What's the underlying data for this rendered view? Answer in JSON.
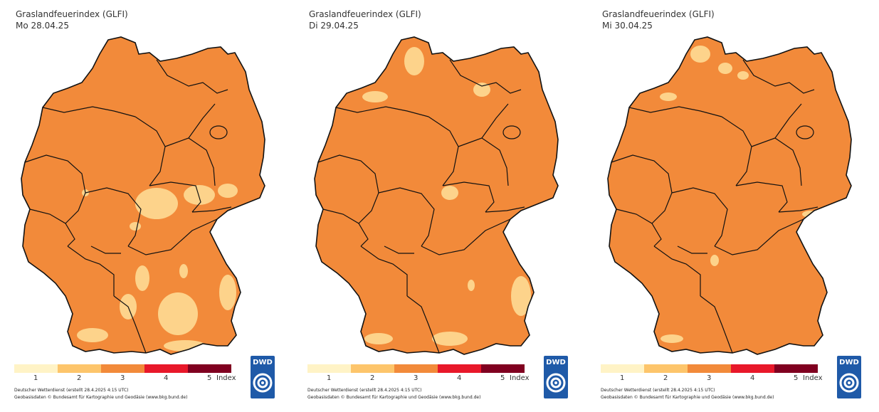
{
  "panels": [
    {
      "title": "Graslandfeuerindex (GLFI)",
      "date": "Mo 28.04.25",
      "footer1": "Deutscher Wetterdienst (erstellt 28.4.2025 4:15 UTC)",
      "footer2": "Geobasisdaten © Bundesamt für Kartographie und Geodäsie (www.bkg.bund.de)"
    },
    {
      "title": "Graslandfeuerindex (GLFI)",
      "date": "Di 29.04.25",
      "footer1": "Deutscher Wetterdienst (erstellt 28.4.2025 4:15 UTC)",
      "footer2": "Geobasisdaten © Bundesamt für Kartographie und Geodäsie (www.bkg.bund.de)"
    },
    {
      "title": "Graslandfeuerindex (GLFI)",
      "date": "Mi 30.04.25",
      "footer1": "Deutscher Wetterdienst (erstellt 28.4.2025 4:15 UTC)",
      "footer2": "Geobasisdaten © Bundesamt für Kartographie und Geodäsie (www.bkg.bund.de)"
    }
  ],
  "legend": {
    "labels": [
      "1",
      "2",
      "3",
      "4",
      "5"
    ],
    "unit": "Index",
    "colors": [
      "#fff3c6",
      "#fdc56b",
      "#f28a3a",
      "#e8182a",
      "#800020"
    ]
  },
  "logo": {
    "text": "DWD",
    "color": "#1f5aa8"
  },
  "map_colors": {
    "main": "#f28a3a",
    "low": "#fdd38b",
    "border": "#111111"
  }
}
